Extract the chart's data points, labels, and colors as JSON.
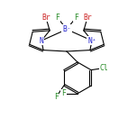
{
  "background": "#ffffff",
  "bond_color": "#000000",
  "atom_colors": {
    "N": "#2222cc",
    "B": "#2222cc",
    "Br": "#cc2222",
    "F": "#228822",
    "Cl": "#228822"
  },
  "figsize": [
    1.52,
    1.52
  ],
  "dpi": 100
}
